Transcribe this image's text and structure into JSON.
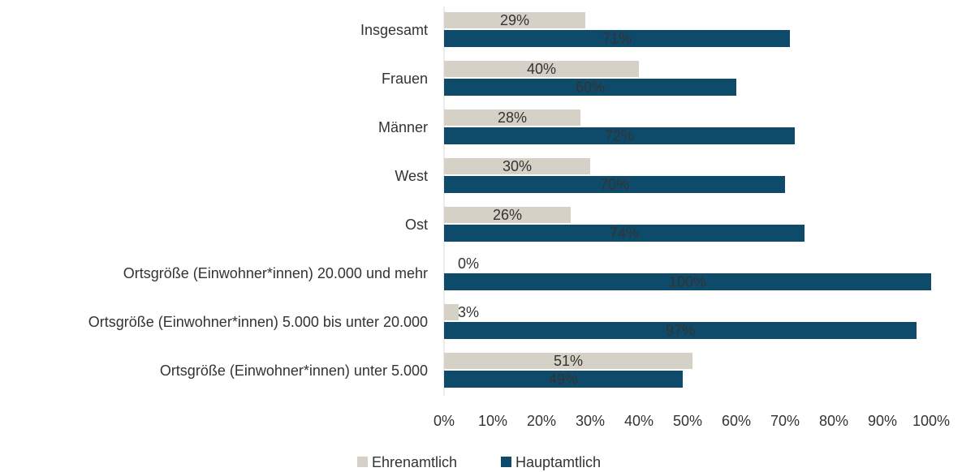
{
  "chart_data": {
    "type": "bar",
    "orientation": "horizontal",
    "categories": [
      "Insgesamt",
      "Frauen",
      "Männer",
      "West",
      "Ost",
      "Ortsgröße (Einwohner*innen) 20.000 und mehr",
      "Ortsgröße (Einwohner*innen) 5.000 bis unter 20.000",
      "Ortsgröße (Einwohner*innen) unter 5.000"
    ],
    "series": [
      {
        "name": "Ehrenamtlich",
        "color": "#d6d1c6",
        "values": [
          29,
          40,
          28,
          30,
          26,
          0,
          3,
          51
        ],
        "value_labels": [
          "29%",
          "40%",
          "28%",
          "30%",
          "26%",
          "0%",
          "3%",
          "51%"
        ]
      },
      {
        "name": "Hauptamtlich",
        "color": "#0e4b6b",
        "values": [
          71,
          60,
          72,
          70,
          74,
          100,
          97,
          49
        ],
        "value_labels": [
          "71%",
          "60%",
          "72%",
          "70%",
          "74%",
          "100%",
          "97%",
          "49%"
        ]
      }
    ],
    "xlim": [
      0,
      100
    ],
    "xticks": [
      {
        "value": 0,
        "label": "0%"
      },
      {
        "value": 10,
        "label": "10%"
      },
      {
        "value": 20,
        "label": "20%"
      },
      {
        "value": 30,
        "label": "30%"
      },
      {
        "value": 40,
        "label": "40%"
      },
      {
        "value": 50,
        "label": "50%"
      },
      {
        "value": 60,
        "label": "60%"
      },
      {
        "value": 70,
        "label": "70%"
      },
      {
        "value": 80,
        "label": "80%"
      },
      {
        "value": 90,
        "label": "90%"
      },
      {
        "value": 100,
        "label": "100%"
      }
    ],
    "legend": "bottom"
  }
}
